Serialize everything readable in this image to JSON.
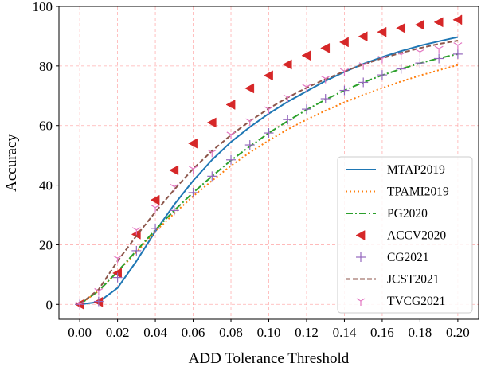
{
  "chart_data": {
    "type": "line",
    "title": "",
    "xlabel": "ADD Tolerance Threshold",
    "ylabel": "Accuracy",
    "xlim": [
      -0.011,
      0.211
    ],
    "ylim": [
      -5,
      100
    ],
    "xticks": [
      0.0,
      0.02,
      0.04,
      0.06,
      0.08,
      0.1,
      0.12,
      0.14,
      0.16,
      0.18,
      0.2
    ],
    "xtick_labels": [
      "0.00",
      "0.02",
      "0.04",
      "0.06",
      "0.08",
      "0.10",
      "0.12",
      "0.14",
      "0.16",
      "0.18",
      "0.20"
    ],
    "yticks": [
      0,
      20,
      40,
      60,
      80,
      100
    ],
    "ytick_labels": [
      "0",
      "20",
      "40",
      "60",
      "80",
      "100"
    ],
    "grid": true,
    "legend_position": "lower-right",
    "x": [
      0.0,
      0.01,
      0.02,
      0.03,
      0.04,
      0.05,
      0.06,
      0.07,
      0.08,
      0.09,
      0.1,
      0.11,
      0.12,
      0.13,
      0.14,
      0.15,
      0.16,
      0.17,
      0.18,
      0.19,
      0.2
    ],
    "series": [
      {
        "name": "MTAP2019",
        "style": "line",
        "color": "#1f77b4",
        "dash": "",
        "values": [
          0,
          0.8,
          5.5,
          14.5,
          24.5,
          33.5,
          41.5,
          48.5,
          54.5,
          59.5,
          64,
          68,
          71.5,
          75,
          78,
          80.7,
          83,
          85,
          86.8,
          88.3,
          89.7
        ]
      },
      {
        "name": "TPAMI2019",
        "style": "line",
        "color": "#ff7f0e",
        "dash": "2,3",
        "values": [
          0,
          4.5,
          11,
          17.5,
          24.5,
          30.5,
          36.3,
          41.5,
          46.5,
          51,
          55,
          58.7,
          62,
          65,
          67.8,
          70.3,
          72.6,
          74.8,
          76.8,
          78.6,
          80.3
        ]
      },
      {
        "name": "PG2020",
        "style": "line",
        "color": "#2ca02c",
        "dash": "9,3,2,3",
        "values": [
          0,
          4.5,
          11,
          18,
          25,
          31.5,
          37.5,
          43,
          48.3,
          53,
          57.5,
          61.5,
          65.3,
          68.7,
          71.8,
          74.5,
          76.9,
          79,
          80.9,
          82.6,
          84
        ]
      },
      {
        "name": "ACCV2020",
        "style": "marker",
        "marker": "triangle-left",
        "color": "#d62728",
        "values": [
          0,
          0.8,
          10.5,
          23.5,
          35,
          45,
          54,
          61,
          67,
          72.5,
          76.8,
          80.5,
          83.5,
          86,
          88,
          89.9,
          91.4,
          92.7,
          93.8,
          94.7,
          95.5
        ]
      },
      {
        "name": "CG2021",
        "style": "marker",
        "marker": "plus",
        "color": "#9467bd",
        "values": [
          0,
          1,
          9,
          18,
          25.5,
          31.5,
          37.5,
          43,
          48.5,
          53.5,
          57.5,
          62,
          65.5,
          69,
          71.8,
          74.5,
          77,
          79,
          81,
          82.5,
          84
        ]
      },
      {
        "name": "JCST2021",
        "style": "line",
        "color": "#8c564b",
        "dash": "6,3",
        "values": [
          0,
          5,
          14.5,
          23,
          31,
          38.5,
          45.5,
          51.5,
          56.8,
          61.5,
          65.7,
          69.4,
          72.7,
          75.6,
          78.2,
          80.5,
          82.6,
          84.4,
          86,
          87.4,
          88.5
        ]
      },
      {
        "name": "TVCG2021",
        "style": "marker",
        "marker": "tri-down",
        "color": "#e377c2",
        "values": [
          0,
          4.5,
          15.5,
          25,
          32.5,
          39.5,
          45.5,
          51,
          57,
          61.5,
          65.5,
          69.5,
          73,
          75.8,
          78.3,
          80.3,
          82.5,
          83.8,
          84.7,
          85.8,
          87
        ]
      }
    ]
  }
}
